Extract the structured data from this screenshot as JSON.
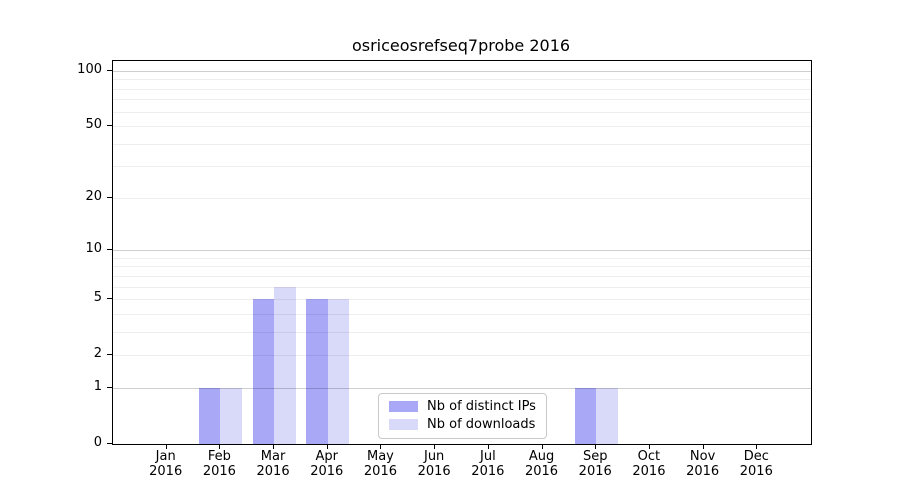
{
  "chart_data": {
    "type": "bar",
    "title": "osriceosrefseq7probe 2016",
    "categories": [
      "Jan",
      "Feb",
      "Mar",
      "Apr",
      "May",
      "Jun",
      "Jul",
      "Aug",
      "Sep",
      "Oct",
      "Nov",
      "Dec"
    ],
    "year_label": "2016",
    "series": [
      {
        "name": "Nb of distinct IPs",
        "color": "#a8a8f7",
        "values": [
          0,
          1,
          5,
          5,
          0,
          0,
          0,
          0,
          1,
          0,
          0,
          0
        ]
      },
      {
        "name": "Nb of downloads",
        "color": "#d9d9f9",
        "values": [
          0,
          1,
          6,
          5,
          0,
          0,
          0,
          0,
          1,
          0,
          0,
          0
        ]
      }
    ],
    "xlabel": "",
    "ylabel": "",
    "yscale": "log1p",
    "ylim": [
      0,
      113
    ],
    "yticks": [
      0,
      1,
      2,
      5,
      10,
      20,
      50,
      100
    ],
    "grid_minor_values": [
      2,
      3,
      4,
      5,
      6,
      7,
      8,
      9,
      20,
      30,
      40,
      50,
      60,
      70,
      80,
      90
    ],
    "grid_major_values": [
      1,
      10,
      100
    ],
    "legend_position": "lower-center",
    "grid": true
  }
}
